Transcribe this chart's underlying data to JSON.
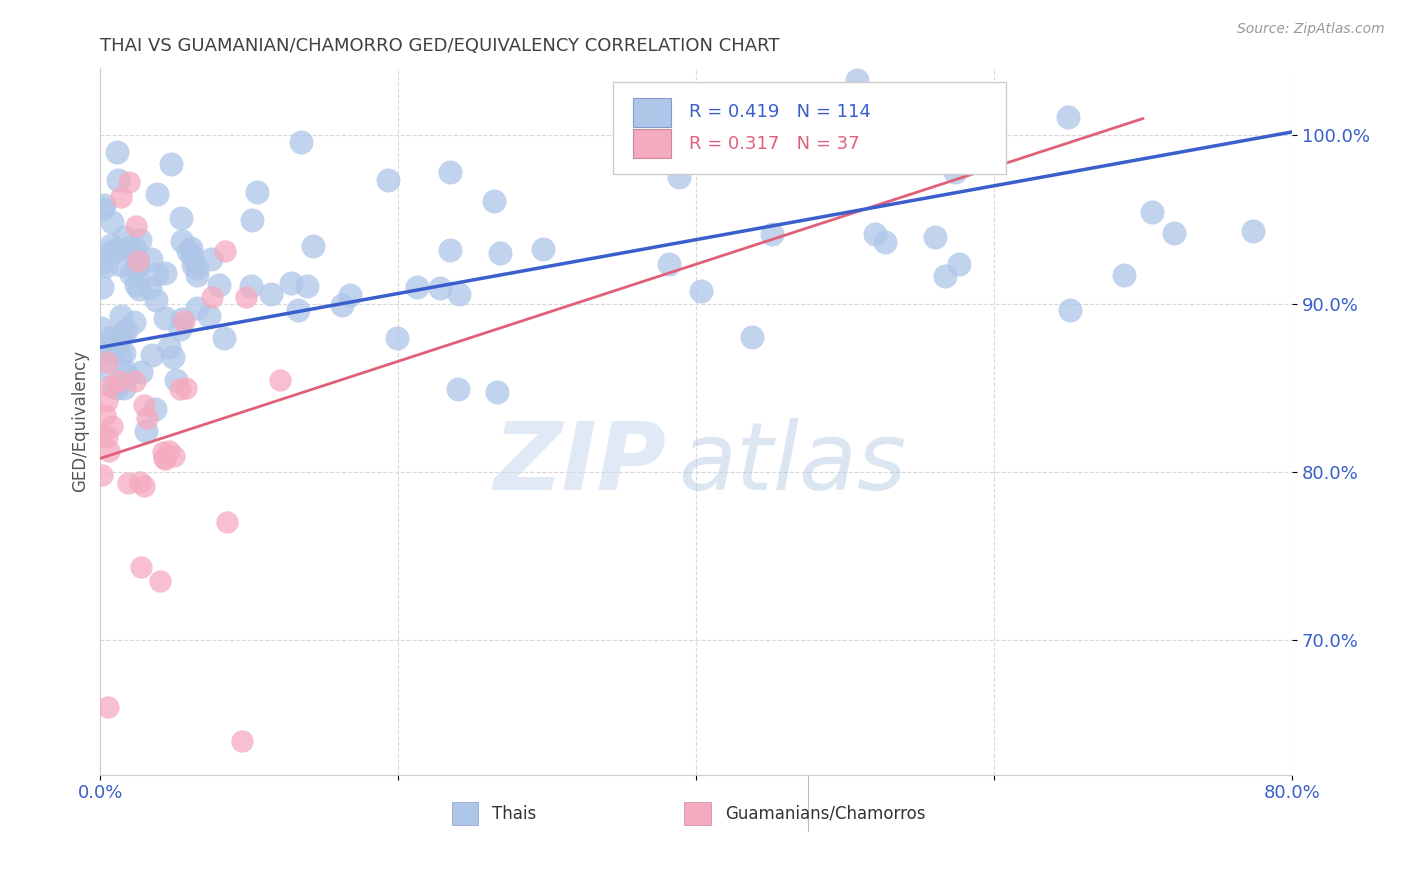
{
  "title": "THAI VS GUAMANIAN/CHAMORRO GED/EQUIVALENCY CORRELATION CHART",
  "source": "Source: ZipAtlas.com",
  "ylabel": "GED/Equivalency",
  "watermark_zip": "ZIP",
  "watermark_atlas": "atlas",
  "legend_thai": "Thais",
  "legend_guam": "Guamanians/Chamorros",
  "thai_R": 0.419,
  "thai_N": 114,
  "guam_R": 0.317,
  "guam_N": 37,
  "thai_color": "#aec6e8",
  "thai_color_edge": "#aec6e8",
  "thai_line_color": "#3a5ecc",
  "guam_color": "#f5aabf",
  "guam_color_edge": "#f5aabf",
  "guam_line_color": "#e0607a",
  "xlim": [
    0.0,
    0.8
  ],
  "ylim": [
    0.62,
    1.04
  ],
  "ytick_vals": [
    0.7,
    0.8,
    0.9,
    1.0
  ],
  "ytick_labels": [
    "70.0%",
    "80.0%",
    "90.0%",
    "100.0%"
  ],
  "xtick_vals": [
    0.0,
    0.2,
    0.4,
    0.6,
    0.8
  ],
  "xtick_labels": [
    "0.0%",
    "",
    "",
    "",
    "80.0%"
  ],
  "background_color": "#ffffff",
  "grid_color": "#d8d8d8",
  "title_color": "#404040",
  "source_color": "#999999",
  "axis_color": "#3a5ecc",
  "ylabel_color": "#555555",
  "thai_line_x0": 0.0,
  "thai_line_x1": 0.8,
  "thai_line_y0": 0.874,
  "thai_line_y1": 1.002,
  "guam_line_x0": 0.0,
  "guam_line_x1": 0.7,
  "guam_line_y0": 0.808,
  "guam_line_y1": 1.01,
  "scatter_size_thai": 300,
  "scatter_size_guam": 260,
  "scatter_alpha": 0.75
}
